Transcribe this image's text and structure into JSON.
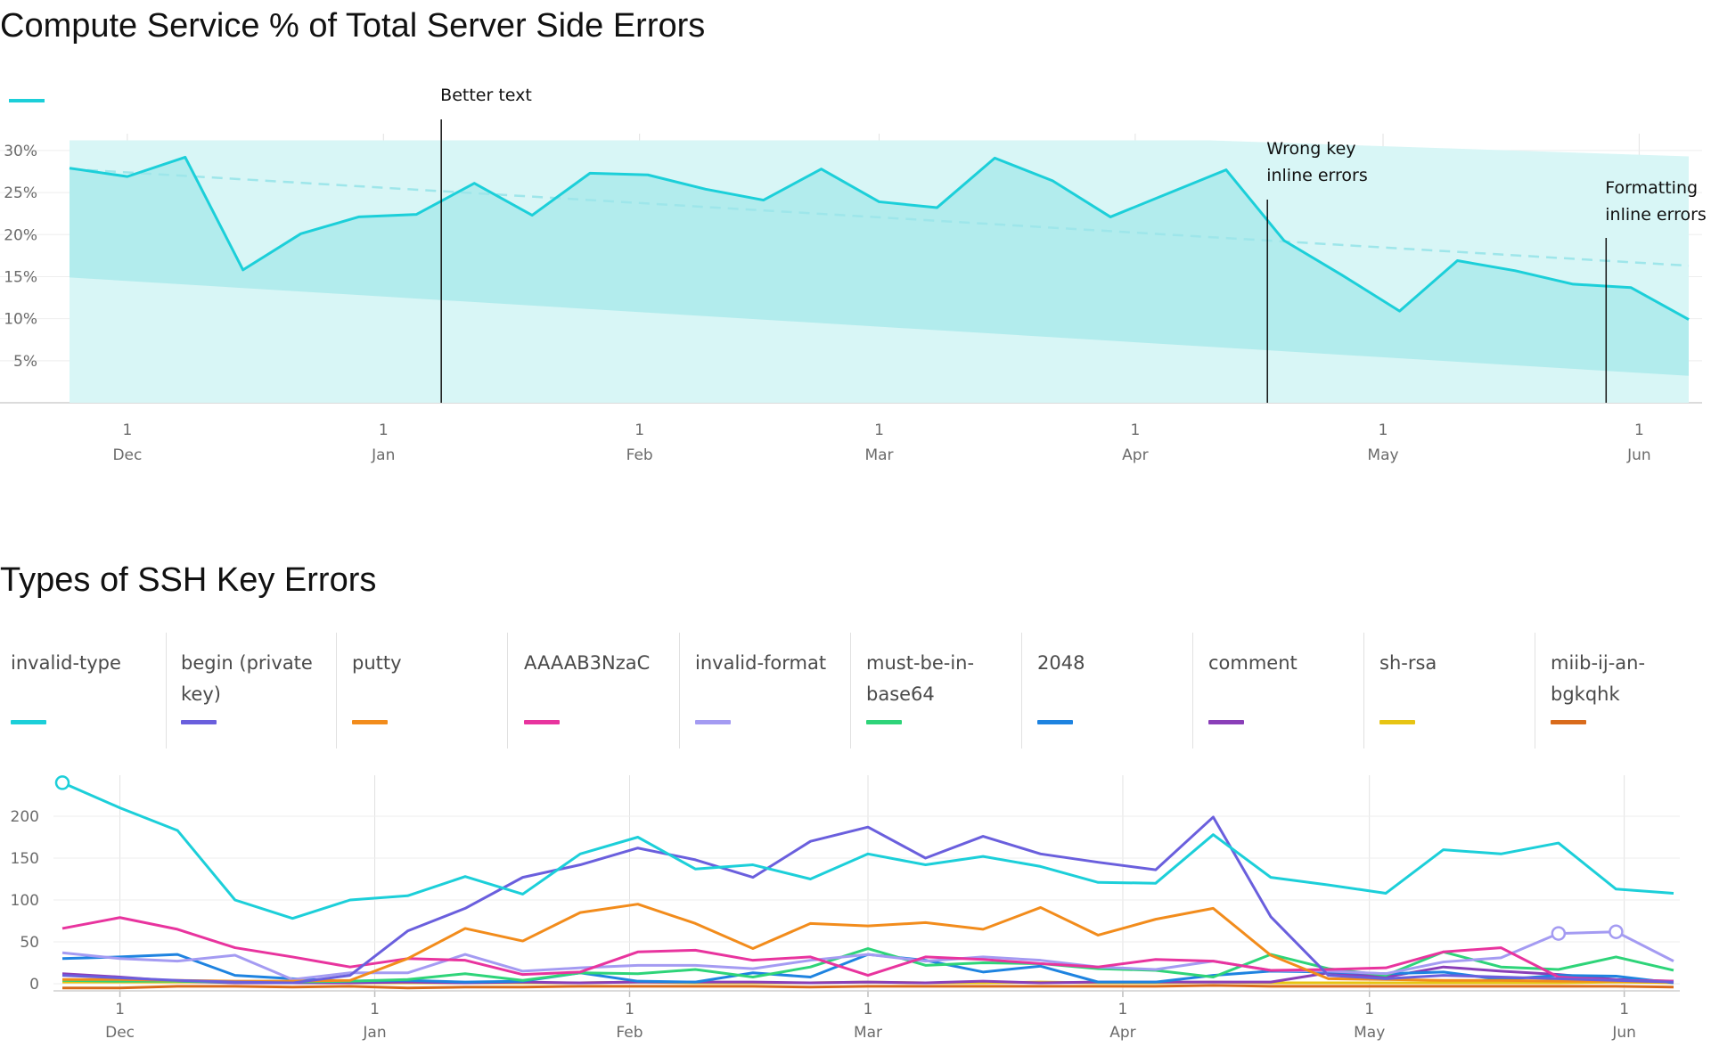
{
  "colors": {
    "teal": "#1ccfd9",
    "band_dark": "#b2eced",
    "band_light": "#d8f6f6",
    "grid": "#e2e2e2",
    "annotation": "#111111"
  },
  "chart_data": [
    {
      "type": "line",
      "title": "Compute Service % of Total Server Side Errors",
      "legend_swatch_color": "#1ccfd9",
      "y_ticks": [
        "30%",
        "25%",
        "20%",
        "15%",
        "10%",
        "5%"
      ],
      "ylim": [
        0,
        32
      ],
      "x_ticks": [
        {
          "day": "1",
          "month": "Dec"
        },
        {
          "day": "1",
          "month": "Jan"
        },
        {
          "day": "1",
          "month": "Feb"
        },
        {
          "day": "1",
          "month": "Mar"
        },
        {
          "day": "1",
          "month": "Apr"
        },
        {
          "day": "1",
          "month": "May"
        },
        {
          "day": "1",
          "month": "Jun"
        }
      ],
      "x": [
        "2023-11-24",
        "2023-12-01",
        "2023-12-08",
        "2023-12-15",
        "2023-12-22",
        "2023-12-29",
        "2024-01-05",
        "2024-01-12",
        "2024-01-19",
        "2024-01-26",
        "2024-02-02",
        "2024-02-09",
        "2024-02-16",
        "2024-02-23",
        "2024-03-01",
        "2024-03-08",
        "2024-03-15",
        "2024-03-22",
        "2024-03-29",
        "2024-04-05",
        "2024-04-12",
        "2024-04-19",
        "2024-04-26",
        "2024-05-03",
        "2024-05-10",
        "2024-05-17",
        "2024-05-24",
        "2024-05-31",
        "2024-06-07"
      ],
      "series": [
        {
          "values": [
            27.9,
            26.9,
            29.2,
            15.8,
            20.1,
            22.1,
            22.4,
            26.1,
            22.3,
            27.3,
            27.1,
            25.4,
            24.1,
            27.8,
            23.9,
            23.2,
            29.1,
            26.4,
            22.1,
            24.9,
            27.7,
            19.3,
            15.2,
            10.9,
            16.9,
            15.7,
            14.1,
            13.7,
            9.9
          ],
          "color": "#1ccfd9"
        }
      ],
      "trend_line": {
        "start": 27.8,
        "end": 16.3,
        "color": "#9ee6ea"
      },
      "band_outer": {
        "upper_start": 31.2,
        "upper_end": 29.3,
        "lower": 0
      },
      "band_inner": {
        "upper": "series",
        "lower_start": 14.9,
        "lower_end": 3.2
      },
      "annotations": [
        {
          "x": "2024-01-08",
          "lines": [
            "Better text"
          ]
        },
        {
          "x": "2024-04-17",
          "lines": [
            "Wrong key",
            "inline errors"
          ]
        },
        {
          "x": "2024-05-28",
          "lines": [
            "Formatting",
            "inline errors"
          ]
        }
      ]
    },
    {
      "type": "line",
      "title": "Types of SSH Key Errors",
      "legend_position": "top",
      "y_ticks": [
        "200",
        "150",
        "100",
        "50",
        "0"
      ],
      "ylim": [
        0,
        240
      ],
      "x_ticks": [
        {
          "day": "1",
          "month": "Dec"
        },
        {
          "day": "1",
          "month": "Jan"
        },
        {
          "day": "1",
          "month": "Feb"
        },
        {
          "day": "1",
          "month": "Mar"
        },
        {
          "day": "1",
          "month": "Apr"
        },
        {
          "day": "1",
          "month": "May"
        },
        {
          "day": "1",
          "month": "Jun"
        }
      ],
      "x": [
        "2023-11-24",
        "2023-12-01",
        "2023-12-08",
        "2023-12-15",
        "2023-12-22",
        "2023-12-29",
        "2024-01-05",
        "2024-01-12",
        "2024-01-19",
        "2024-01-26",
        "2024-02-02",
        "2024-02-09",
        "2024-02-16",
        "2024-02-23",
        "2024-03-01",
        "2024-03-08",
        "2024-03-15",
        "2024-03-22",
        "2024-03-29",
        "2024-04-05",
        "2024-04-12",
        "2024-04-19",
        "2024-04-26",
        "2024-05-03",
        "2024-05-10",
        "2024-05-17",
        "2024-05-24",
        "2024-05-31",
        "2024-06-07"
      ],
      "series": [
        {
          "name": "invalid-type",
          "color": "#1ccfd9",
          "values": [
            240,
            210,
            183,
            100,
            78,
            100,
            105,
            128,
            107,
            155,
            175,
            137,
            142,
            125,
            155,
            142,
            152,
            140,
            121,
            120,
            178,
            127,
            118,
            108,
            160,
            155,
            168,
            113,
            108
          ],
          "markers": [
            0
          ]
        },
        {
          "name": "begin (private key)",
          "color": "#6a5fdd",
          "values": [
            10,
            7,
            4,
            2,
            1,
            10,
            63,
            90,
            127,
            142,
            162,
            148,
            127,
            170,
            187,
            150,
            176,
            155,
            145,
            136,
            199,
            80,
            10,
            6,
            10,
            8,
            6,
            4,
            2
          ],
          "markers": []
        },
        {
          "name": "putty",
          "color": "#f28c1c",
          "values": [
            5,
            5,
            4,
            3,
            3,
            4,
            30,
            66,
            51,
            85,
            95,
            72,
            42,
            72,
            69,
            73,
            65,
            91,
            58,
            77,
            90,
            34,
            6,
            5,
            4,
            4,
            3,
            3,
            2
          ],
          "markers": []
        },
        {
          "name": "AAAAB3NzaC",
          "color": "#e8349e",
          "values": [
            66,
            79,
            65,
            43,
            32,
            20,
            30,
            28,
            11,
            14,
            38,
            40,
            28,
            32,
            10,
            32,
            29,
            24,
            20,
            29,
            27,
            16,
            17,
            19,
            38,
            43,
            8,
            4,
            3
          ],
          "markers": []
        },
        {
          "name": "invalid-format",
          "color": "#a49bf2",
          "values": [
            37,
            30,
            27,
            34,
            5,
            13,
            13,
            35,
            15,
            19,
            22,
            22,
            18,
            28,
            35,
            27,
            32,
            28,
            20,
            17,
            27,
            16,
            15,
            12,
            26,
            31,
            60,
            62,
            27
          ],
          "markers": [
            26,
            27
          ]
        },
        {
          "name": "must-be-in-base64",
          "color": "#2ed479",
          "values": [
            4,
            3,
            3,
            2,
            2,
            3,
            5,
            12,
            4,
            13,
            12,
            17,
            8,
            20,
            42,
            22,
            25,
            24,
            18,
            16,
            8,
            35,
            18,
            10,
            38,
            20,
            17,
            32,
            16
          ],
          "markers": []
        },
        {
          "name": "2048",
          "color": "#1e83e0",
          "values": [
            30,
            32,
            35,
            10,
            6,
            3,
            4,
            2,
            3,
            13,
            3,
            2,
            13,
            8,
            35,
            28,
            14,
            21,
            2,
            2,
            10,
            15,
            14,
            12,
            14,
            5,
            10,
            9,
            1
          ],
          "markers": []
        },
        {
          "name": "comment",
          "color": "#8a3fb8",
          "values": [
            12,
            8,
            3,
            1,
            1,
            1,
            2,
            1,
            2,
            1,
            2,
            2,
            2,
            1,
            2,
            1,
            3,
            1,
            2,
            2,
            2,
            2,
            13,
            8,
            20,
            15,
            11,
            5,
            3
          ],
          "markers": []
        },
        {
          "name": "sh-rsa",
          "color": "#e7c413",
          "values": [
            2,
            2,
            2,
            2,
            1,
            1,
            1,
            1,
            1,
            1,
            2,
            1,
            1,
            1,
            2,
            1,
            1,
            2,
            1,
            1,
            2,
            1,
            1,
            1,
            1,
            1,
            1,
            2,
            1
          ],
          "markers": []
        },
        {
          "name": "miib-ij-an-bgkqhk",
          "color": "#d96b1c",
          "values": [
            -5,
            -5,
            -3,
            -3,
            -4,
            -3,
            -5,
            -4,
            -4,
            -3,
            -3,
            -3,
            -3,
            -4,
            -3,
            -3,
            -3,
            -3,
            -3,
            -3,
            -2,
            -3,
            -3,
            -3,
            -3,
            -3,
            -3,
            -3,
            -4
          ],
          "markers": []
        }
      ]
    }
  ]
}
